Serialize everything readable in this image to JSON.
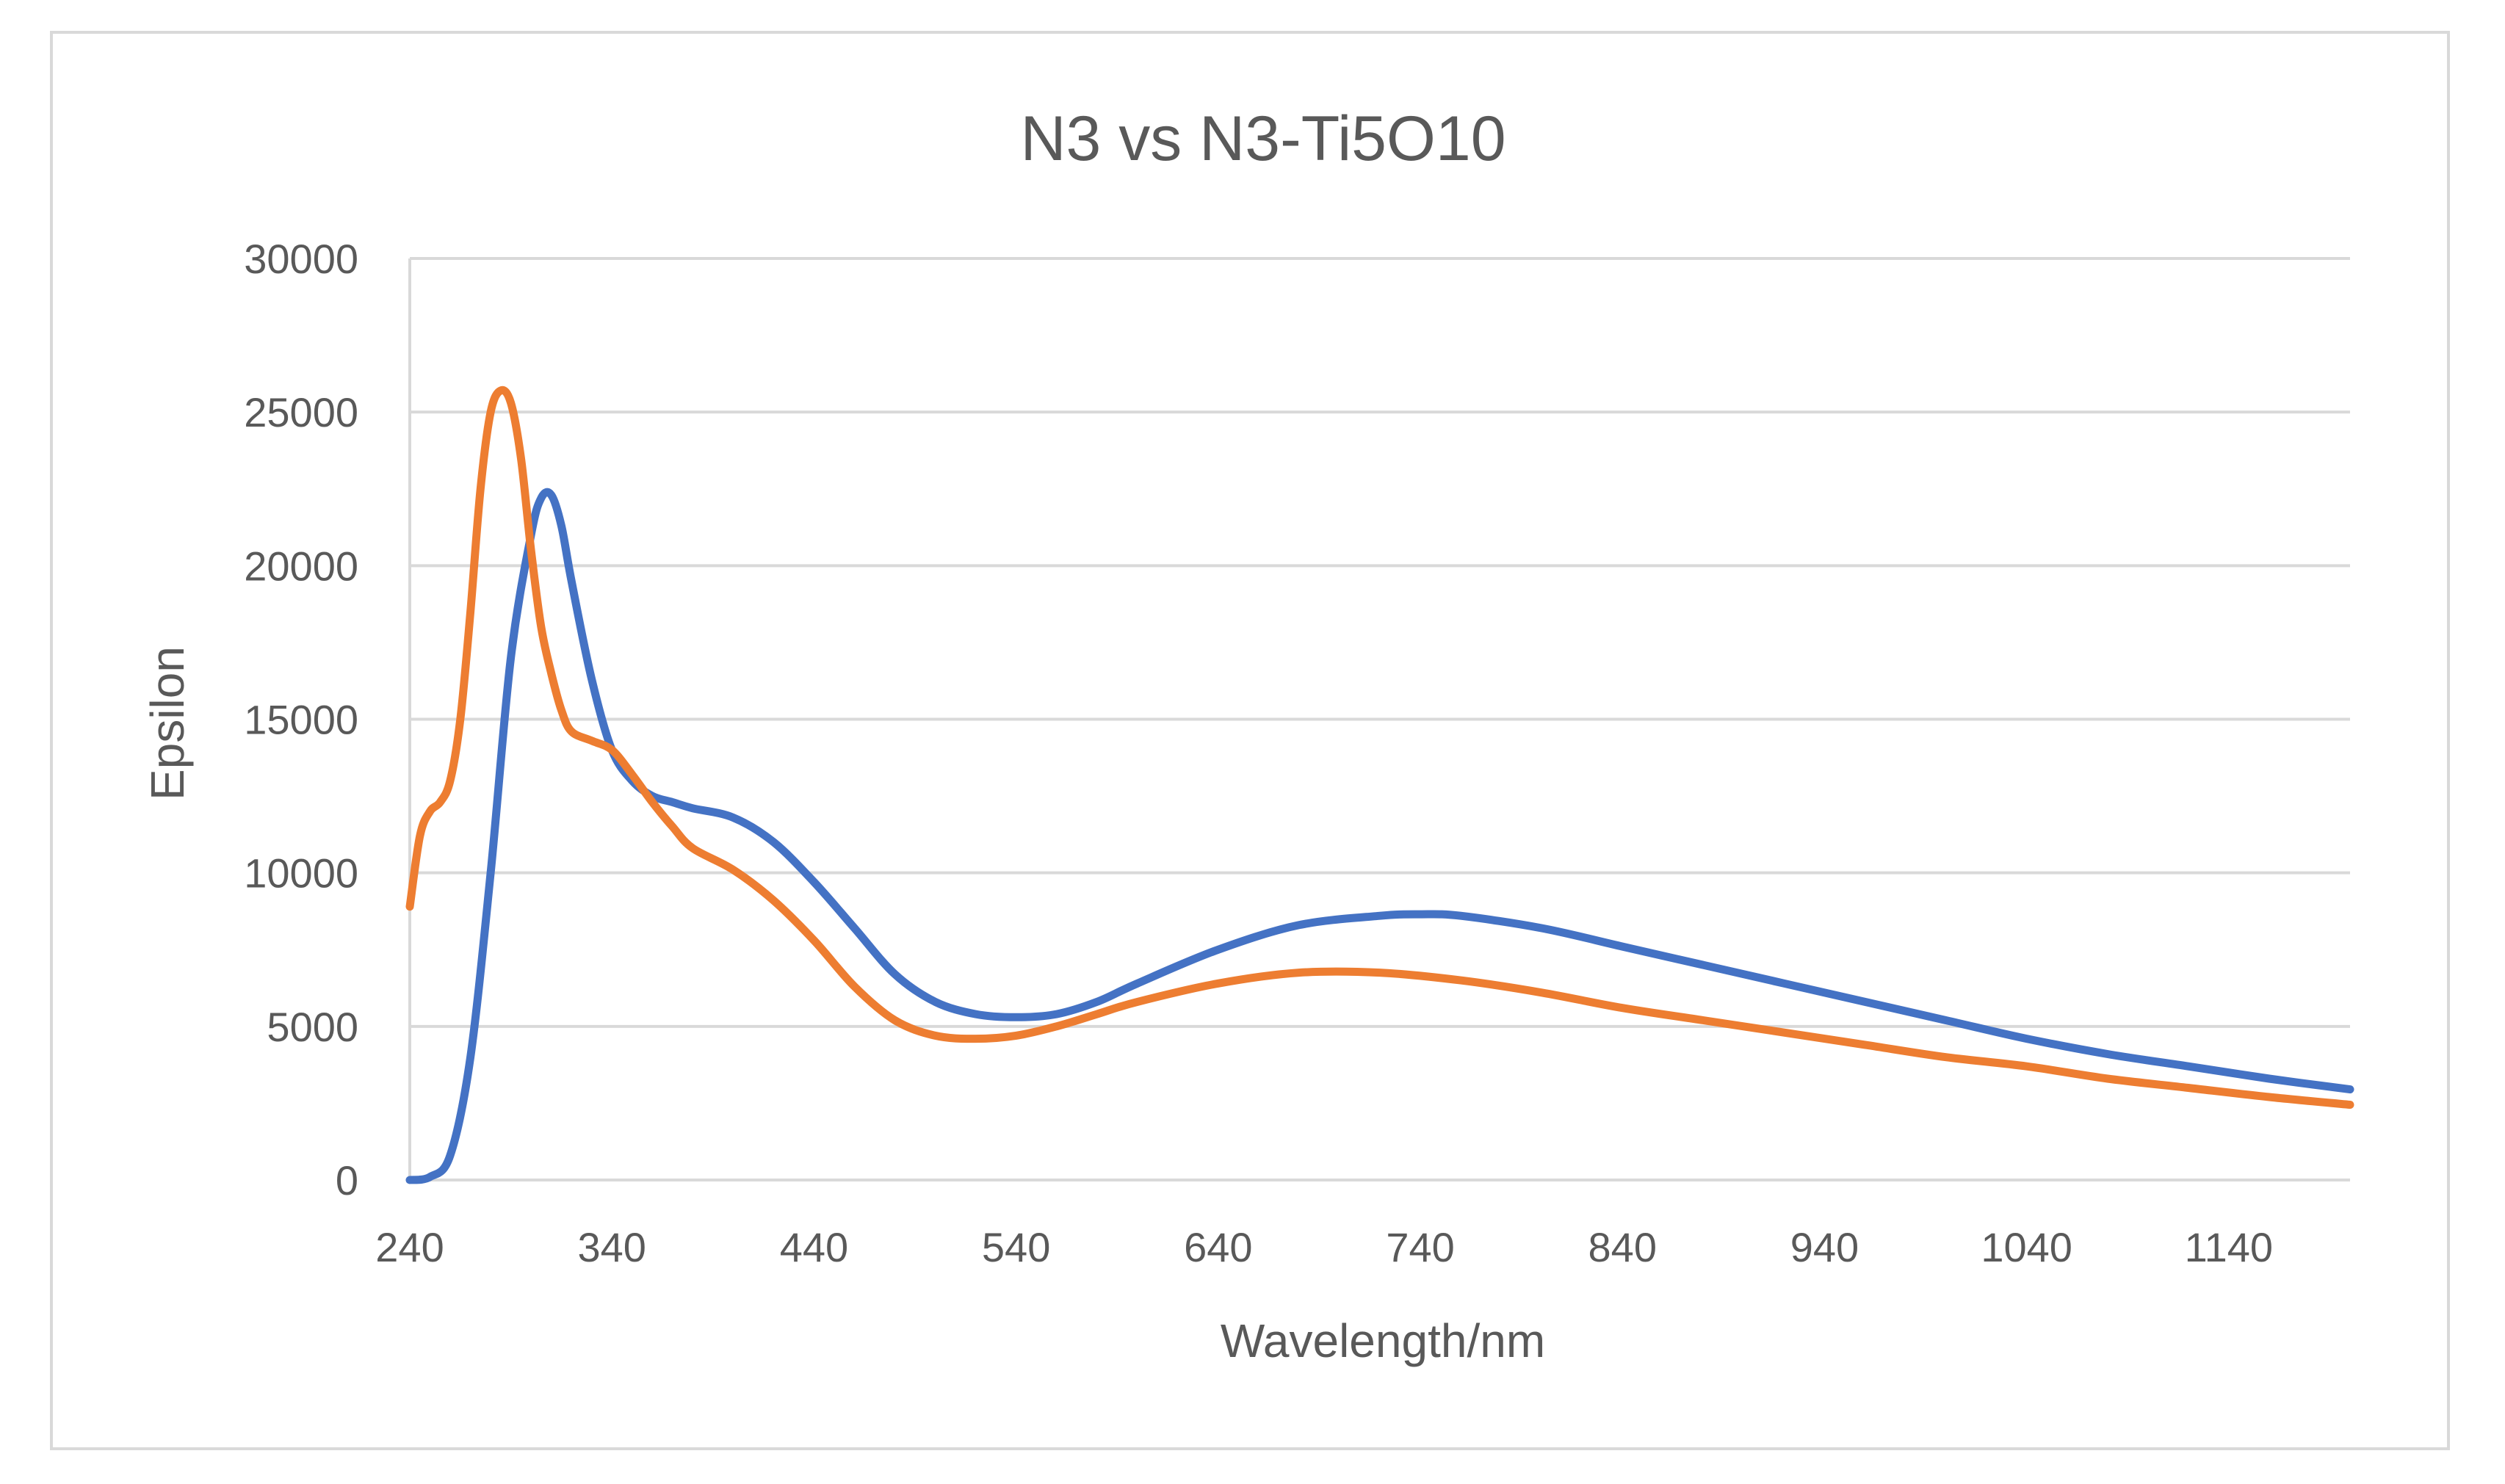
{
  "chart_data": {
    "type": "line",
    "title": "N3  vs N3-Ti5O10",
    "xlabel": "Wavelength/nm",
    "ylabel": "Epsilon",
    "xlim": [
      240,
      1200
    ],
    "ylim": [
      0,
      30000
    ],
    "x_ticks": [
      240,
      340,
      440,
      540,
      640,
      740,
      840,
      940,
      1040,
      1140
    ],
    "y_ticks": [
      0,
      5000,
      10000,
      15000,
      20000,
      25000,
      30000
    ],
    "grid": true,
    "legend": "none",
    "series": [
      {
        "name": "N3",
        "color": "#4472C4",
        "x": [
          240,
          250,
          260,
          270,
          280,
          290,
          300,
          305,
          310,
          315,
          320,
          330,
          340,
          350,
          360,
          370,
          380,
          400,
          420,
          440,
          460,
          480,
          500,
          520,
          540,
          560,
          580,
          600,
          640,
          680,
          720,
          740,
          760,
          800,
          840,
          880,
          920,
          960,
          1000,
          1040,
          1080,
          1120,
          1160,
          1200
        ],
        "y": [
          0,
          100,
          800,
          4000,
          10000,
          17000,
          21000,
          22200,
          22300,
          21300,
          19500,
          16300,
          14000,
          13000,
          12500,
          12300,
          12100,
          11800,
          11000,
          9700,
          8200,
          6700,
          5800,
          5400,
          5300,
          5400,
          5800,
          6400,
          7500,
          8300,
          8600,
          8650,
          8600,
          8200,
          7600,
          7000,
          6400,
          5800,
          5200,
          4600,
          4100,
          3700,
          3300,
          2950
        ]
      },
      {
        "name": "N3-Ti5O10",
        "color": "#ED7D31",
        "x": [
          240,
          245,
          250,
          255,
          260,
          265,
          270,
          275,
          280,
          285,
          290,
          295,
          300,
          305,
          310,
          315,
          320,
          330,
          340,
          350,
          360,
          370,
          380,
          400,
          420,
          440,
          460,
          480,
          500,
          520,
          540,
          560,
          580,
          600,
          640,
          680,
          720,
          760,
          800,
          840,
          880,
          920,
          960,
          1000,
          1040,
          1080,
          1120,
          1160,
          1200
        ],
        "y": [
          8900,
          11200,
          12000,
          12300,
          13000,
          15000,
          18500,
          22500,
          25000,
          25700,
          25300,
          23500,
          20500,
          18000,
          16500,
          15300,
          14600,
          14300,
          14000,
          13200,
          12300,
          11500,
          10800,
          10100,
          9100,
          7800,
          6300,
          5200,
          4700,
          4600,
          4700,
          5000,
          5400,
          5800,
          6400,
          6750,
          6750,
          6500,
          6100,
          5600,
          5200,
          4800,
          4400,
          4000,
          3700,
          3300,
          3000,
          2700,
          2450
        ]
      }
    ]
  }
}
